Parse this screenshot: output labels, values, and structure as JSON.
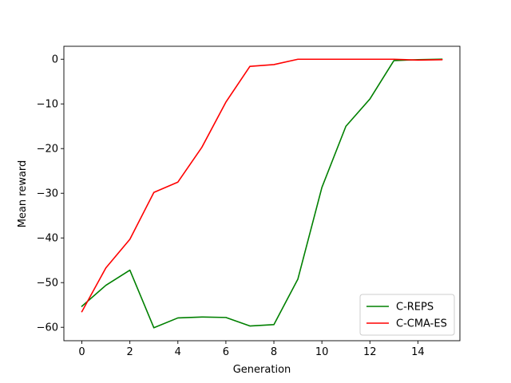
{
  "chart_data": {
    "type": "line",
    "title": "",
    "xlabel": "Generation",
    "ylabel": "Mean reward",
    "xlim": [
      -0.75,
      15.75
    ],
    "ylim": [
      -63.0,
      2.9
    ],
    "xticks": [
      0,
      2,
      4,
      6,
      8,
      10,
      12,
      14
    ],
    "yticks": [
      0,
      -10,
      -20,
      -30,
      -40,
      -50,
      -60
    ],
    "grid": false,
    "legend_position": "lower-right",
    "x": [
      0,
      1,
      2,
      3,
      4,
      5,
      6,
      7,
      8,
      9,
      10,
      11,
      12,
      13,
      14,
      15
    ],
    "series": [
      {
        "name": "C-REPS",
        "color": "#008000",
        "values": [
          -55.3,
          -50.6,
          -47.2,
          -60.1,
          -57.9,
          -57.7,
          -57.8,
          -59.7,
          -59.4,
          -49.2,
          -28.7,
          -15.0,
          -8.9,
          -0.3,
          -0.1,
          0.0
        ]
      },
      {
        "name": "C-CMA-ES",
        "color": "#ff0000",
        "values": [
          -56.5,
          -46.7,
          -40.3,
          -29.8,
          -27.5,
          -19.7,
          -9.6,
          -1.6,
          -1.2,
          0.0,
          0.0,
          0.0,
          0.0,
          0.0,
          -0.2,
          -0.1
        ]
      }
    ]
  }
}
